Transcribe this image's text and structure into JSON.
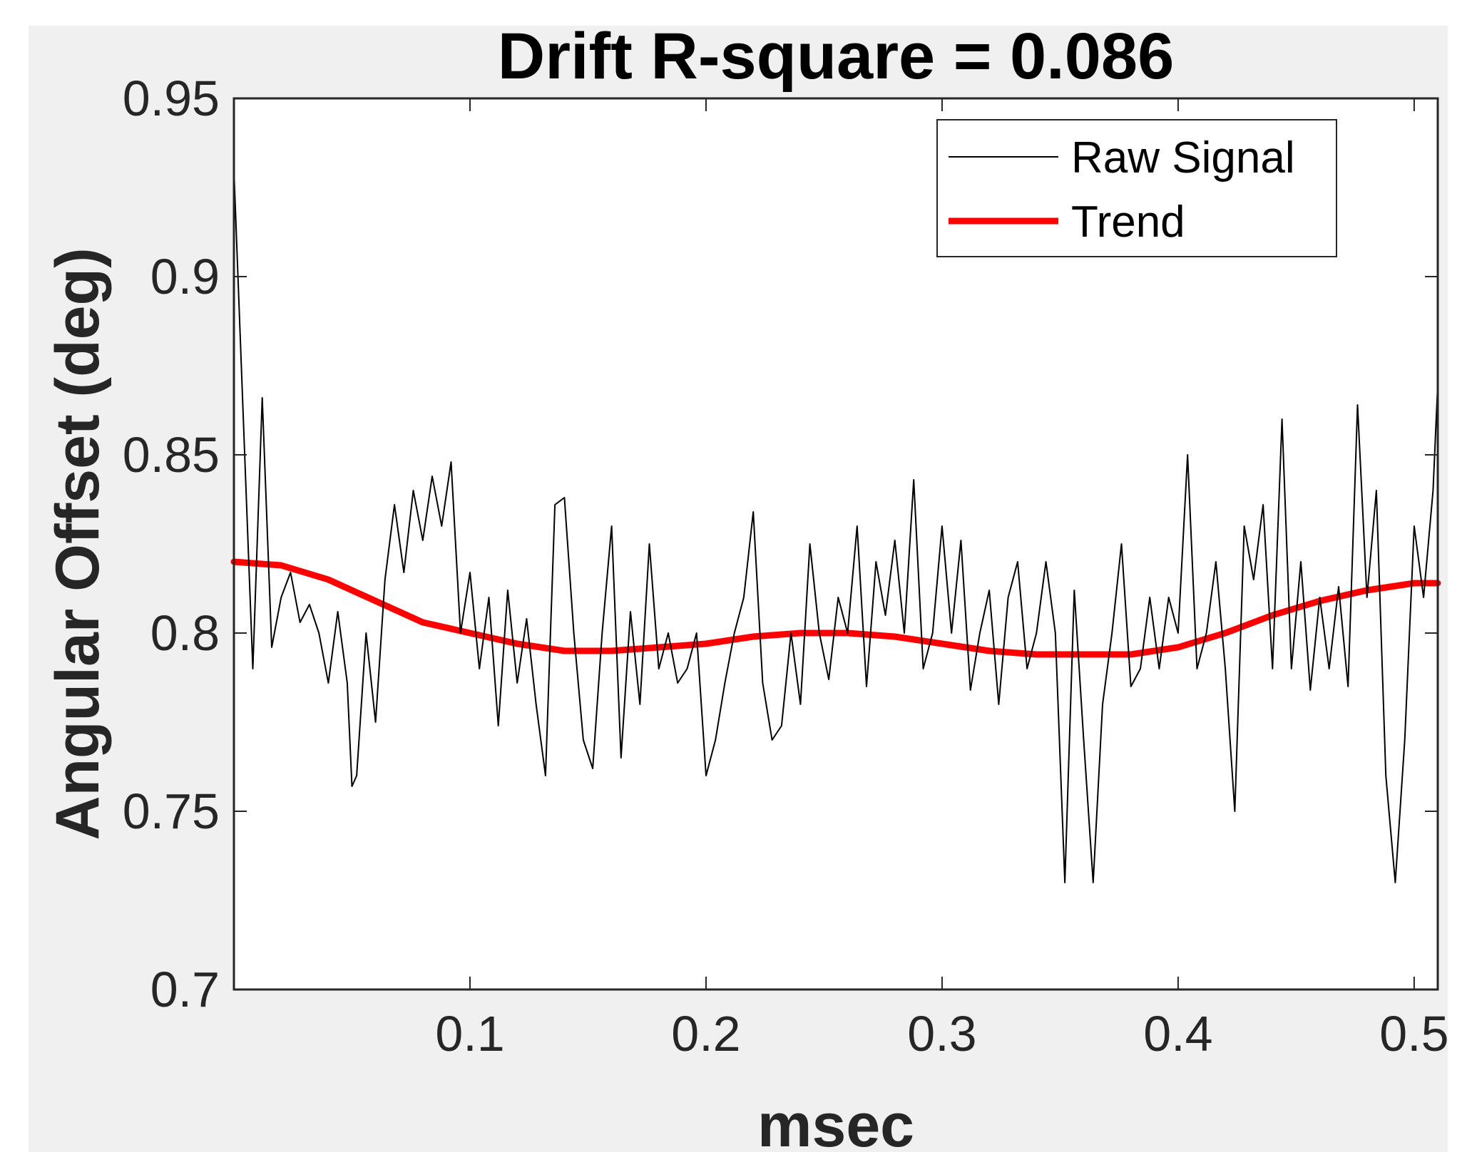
{
  "chart_data": {
    "type": "line",
    "title": "Drift R-square = 0.086",
    "xlabel": "msec",
    "ylabel": "Angular Offset (deg)",
    "xlim": [
      0.0,
      0.51
    ],
    "ylim": [
      0.7,
      0.95
    ],
    "x_ticks": [
      0.1,
      0.2,
      0.3,
      0.4,
      0.5
    ],
    "x_tick_labels": [
      "0.1",
      "0.2",
      "0.3",
      "0.4",
      "0.5"
    ],
    "y_ticks": [
      0.7,
      0.75,
      0.8,
      0.85,
      0.9,
      0.95
    ],
    "y_tick_labels": [
      "0.7",
      "0.75",
      "0.8",
      "0.85",
      "0.9",
      "0.95"
    ],
    "grid": false,
    "legend_position": "top-right",
    "series": [
      {
        "name": "Raw Signal",
        "color": "#000000",
        "style": "thin",
        "x": [
          0.0,
          0.004,
          0.008,
          0.012,
          0.016,
          0.02,
          0.024,
          0.028,
          0.032,
          0.036,
          0.04,
          0.044,
          0.048,
          0.05,
          0.052,
          0.056,
          0.06,
          0.064,
          0.068,
          0.072,
          0.076,
          0.08,
          0.084,
          0.088,
          0.092,
          0.096,
          0.1,
          0.104,
          0.108,
          0.112,
          0.116,
          0.12,
          0.124,
          0.128,
          0.132,
          0.136,
          0.14,
          0.144,
          0.148,
          0.152,
          0.156,
          0.16,
          0.164,
          0.168,
          0.172,
          0.176,
          0.18,
          0.184,
          0.188,
          0.192,
          0.196,
          0.2,
          0.204,
          0.208,
          0.212,
          0.216,
          0.22,
          0.224,
          0.228,
          0.232,
          0.236,
          0.24,
          0.244,
          0.248,
          0.252,
          0.256,
          0.26,
          0.264,
          0.268,
          0.272,
          0.276,
          0.28,
          0.284,
          0.288,
          0.292,
          0.296,
          0.3,
          0.304,
          0.308,
          0.312,
          0.316,
          0.32,
          0.324,
          0.328,
          0.332,
          0.336,
          0.34,
          0.344,
          0.348,
          0.352,
          0.356,
          0.36,
          0.364,
          0.368,
          0.372,
          0.376,
          0.38,
          0.384,
          0.388,
          0.392,
          0.396,
          0.4,
          0.404,
          0.408,
          0.412,
          0.416,
          0.42,
          0.424,
          0.428,
          0.432,
          0.436,
          0.44,
          0.444,
          0.448,
          0.452,
          0.456,
          0.46,
          0.464,
          0.468,
          0.472,
          0.476,
          0.48,
          0.484,
          0.488,
          0.492,
          0.496,
          0.5,
          0.504,
          0.508,
          0.51
        ],
        "y": [
          0.93,
          0.86,
          0.79,
          0.866,
          0.796,
          0.81,
          0.817,
          0.803,
          0.808,
          0.8,
          0.786,
          0.806,
          0.786,
          0.757,
          0.76,
          0.8,
          0.775,
          0.815,
          0.836,
          0.817,
          0.84,
          0.826,
          0.844,
          0.83,
          0.848,
          0.8,
          0.817,
          0.79,
          0.81,
          0.774,
          0.812,
          0.786,
          0.804,
          0.78,
          0.76,
          0.836,
          0.838,
          0.8,
          0.77,
          0.762,
          0.8,
          0.83,
          0.765,
          0.806,
          0.78,
          0.825,
          0.79,
          0.8,
          0.786,
          0.79,
          0.8,
          0.76,
          0.77,
          0.786,
          0.8,
          0.81,
          0.834,
          0.786,
          0.77,
          0.774,
          0.8,
          0.78,
          0.825,
          0.8,
          0.787,
          0.81,
          0.8,
          0.83,
          0.785,
          0.82,
          0.805,
          0.826,
          0.8,
          0.843,
          0.79,
          0.8,
          0.83,
          0.8,
          0.826,
          0.784,
          0.8,
          0.812,
          0.78,
          0.81,
          0.82,
          0.79,
          0.8,
          0.82,
          0.8,
          0.73,
          0.812,
          0.77,
          0.73,
          0.78,
          0.8,
          0.825,
          0.785,
          0.79,
          0.81,
          0.79,
          0.81,
          0.8,
          0.85,
          0.79,
          0.8,
          0.82,
          0.79,
          0.75,
          0.83,
          0.815,
          0.836,
          0.79,
          0.86,
          0.79,
          0.82,
          0.784,
          0.81,
          0.79,
          0.813,
          0.785,
          0.864,
          0.81,
          0.84,
          0.76,
          0.73,
          0.77,
          0.83,
          0.81,
          0.84,
          0.87
        ]
      },
      {
        "name": "Trend",
        "color": "#ff0000",
        "style": "thick",
        "x": [
          0.0,
          0.02,
          0.04,
          0.06,
          0.08,
          0.1,
          0.12,
          0.14,
          0.16,
          0.18,
          0.2,
          0.22,
          0.24,
          0.26,
          0.28,
          0.3,
          0.32,
          0.34,
          0.36,
          0.38,
          0.4,
          0.42,
          0.44,
          0.46,
          0.48,
          0.5,
          0.51
        ],
        "y": [
          0.82,
          0.819,
          0.815,
          0.809,
          0.803,
          0.8,
          0.797,
          0.795,
          0.795,
          0.796,
          0.797,
          0.799,
          0.8,
          0.8,
          0.799,
          0.797,
          0.795,
          0.794,
          0.794,
          0.794,
          0.796,
          0.8,
          0.805,
          0.809,
          0.812,
          0.814,
          0.814
        ]
      }
    ]
  },
  "colors": {
    "figure_background": "#f0f0f0",
    "axes_background": "#ffffff",
    "axis_color": "#262626"
  }
}
